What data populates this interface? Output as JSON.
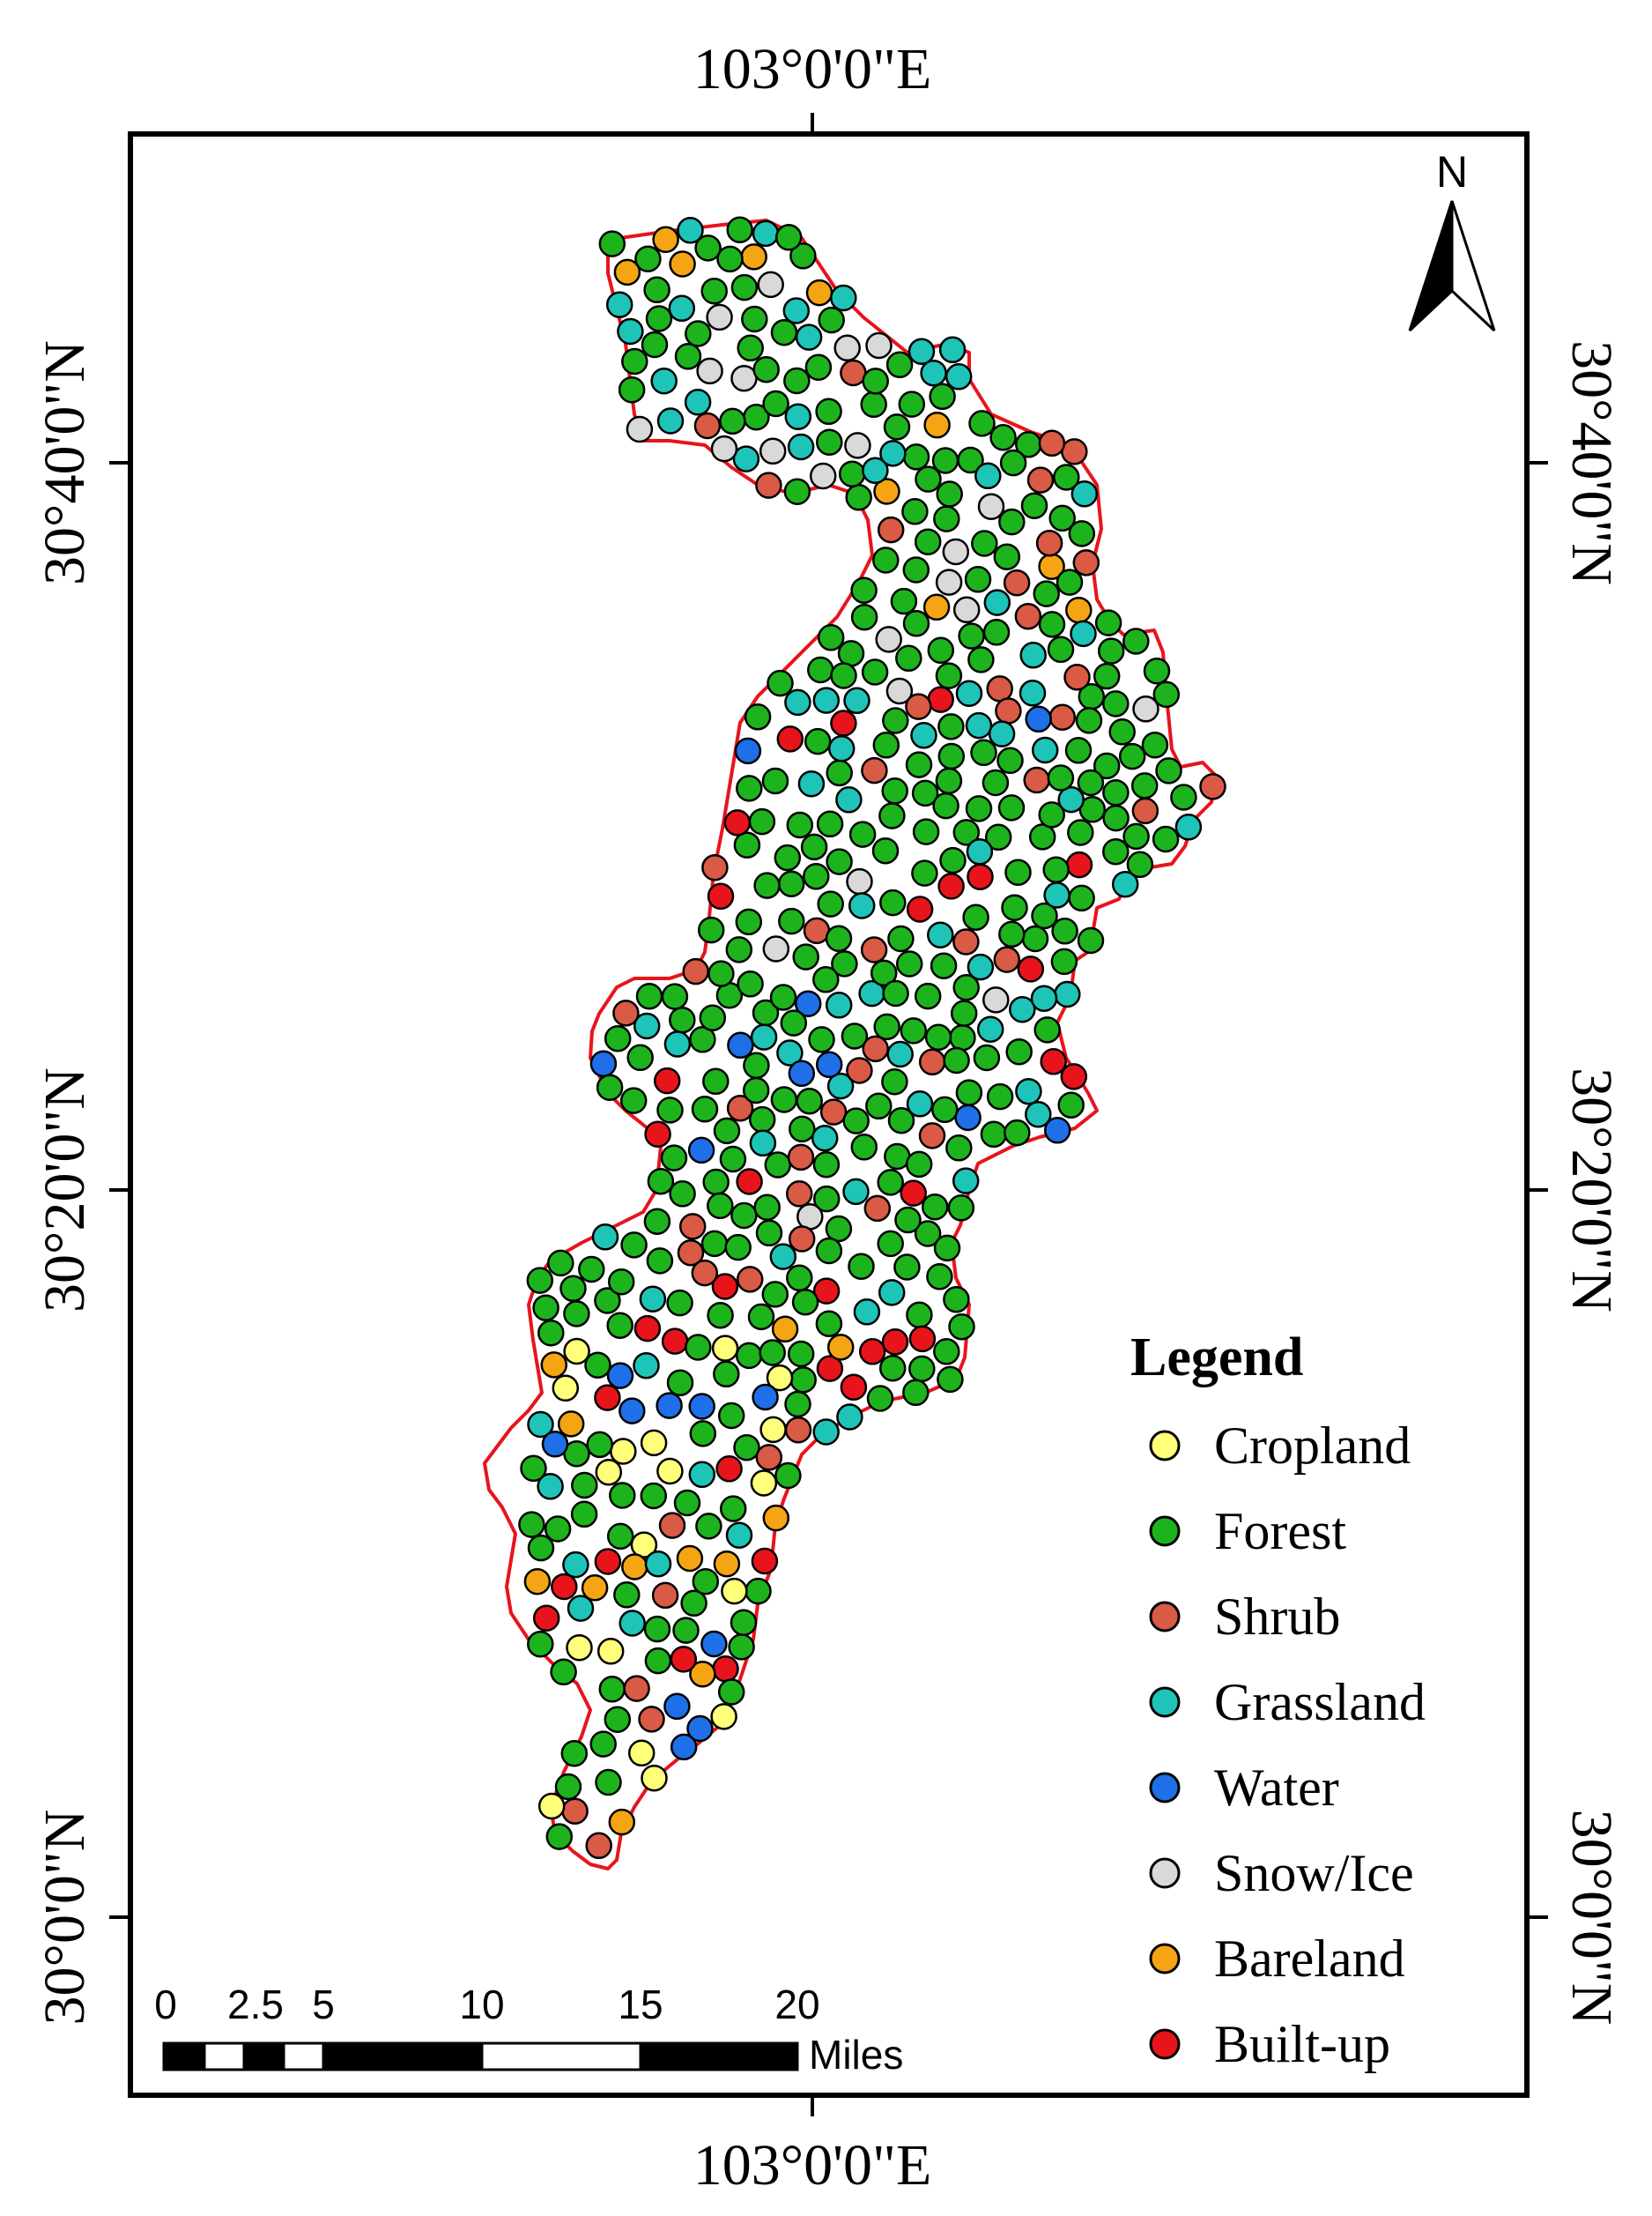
{
  "map": {
    "top_label": "103°0'0\"E",
    "bottom_label": "103°0'0\"E",
    "left_labels": [
      "30°40'0\"N",
      "30°20'0\"N",
      "30°0'0\"N"
    ],
    "right_labels": [
      "30°40'0\"N",
      "30°20'0\"N",
      "30°0'0\"N"
    ],
    "north_arrow_label": "N",
    "boundary_color": "#e8141c"
  },
  "legend": {
    "title": "Legend",
    "items": [
      {
        "label": "Cropland",
        "color": "#ffff7a"
      },
      {
        "label": "Forest",
        "color": "#1db31d"
      },
      {
        "label": "Shrub",
        "color": "#d95a45"
      },
      {
        "label": "Grassland",
        "color": "#1ec4b8"
      },
      {
        "label": "Water",
        "color": "#1e6fe8"
      },
      {
        "label": "Snow/Ice",
        "color": "#d9d9d9"
      },
      {
        "label": "Bareland",
        "color": "#f5a514"
      },
      {
        "label": "Built-up",
        "color": "#e8141c"
      }
    ]
  },
  "scale_bar": {
    "ticks": [
      "0",
      "2.5",
      "5",
      "10",
      "15",
      "20"
    ],
    "unit": "Miles"
  }
}
